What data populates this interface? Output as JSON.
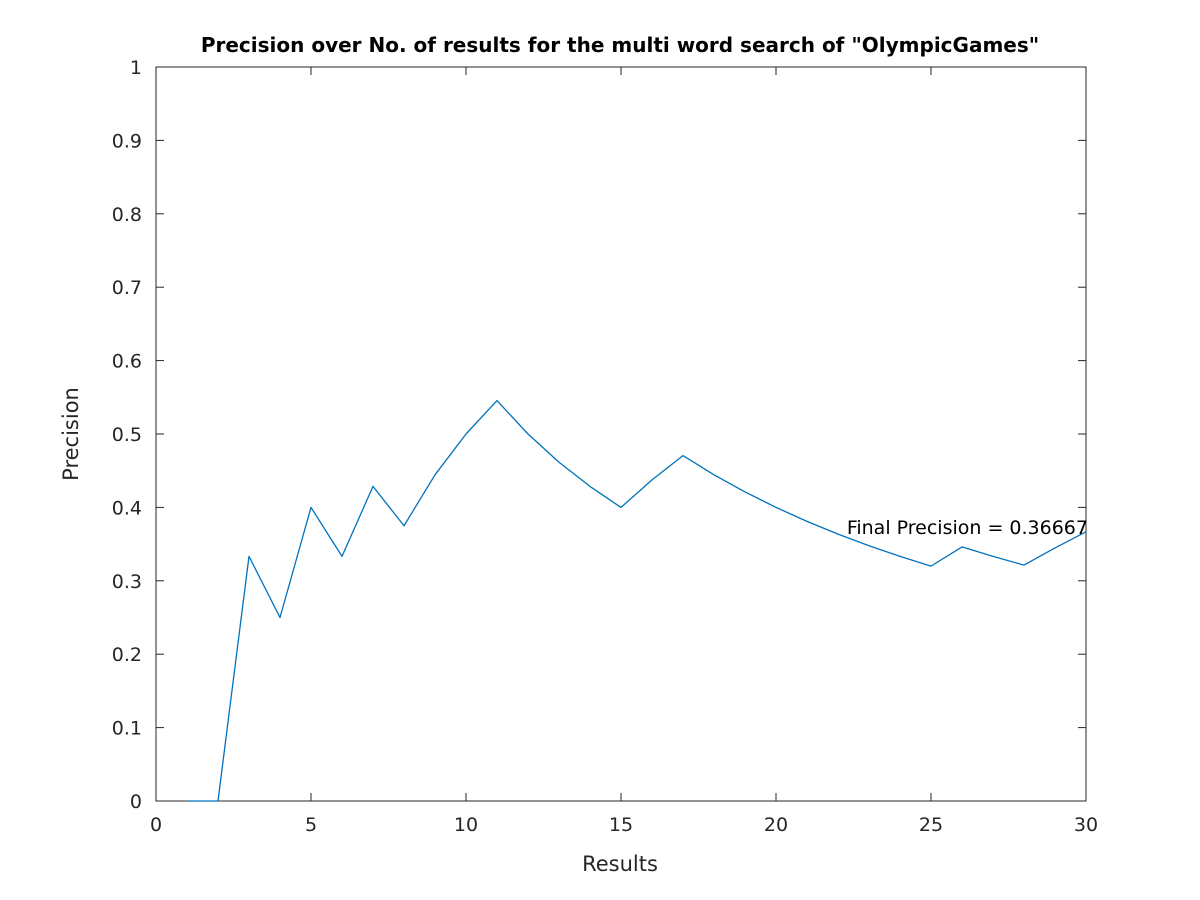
{
  "chart_data": {
    "type": "line",
    "title": "Precision over No. of results for the multi word search of \"OlympicGames\"",
    "xlabel": "Results",
    "ylabel": "Precision",
    "xlim": [
      0,
      30
    ],
    "ylim": [
      0,
      1
    ],
    "xticks": [
      "0",
      "5",
      "10",
      "15",
      "20",
      "25",
      "30"
    ],
    "yticks": [
      "0",
      "0.1",
      "0.2",
      "0.3",
      "0.4",
      "0.5",
      "0.6",
      "0.7",
      "0.8",
      "0.9",
      "1"
    ],
    "grid": false,
    "line_color": "#0072bd",
    "series": [
      {
        "x": [
          1,
          2,
          3,
          4,
          5,
          6,
          7,
          8,
          9,
          10,
          11,
          12,
          13,
          14,
          15,
          16,
          17,
          18,
          19,
          20,
          21,
          22,
          23,
          24,
          25,
          26,
          27,
          28,
          29,
          30
        ],
        "values": [
          0,
          0,
          0.3333,
          0.25,
          0.4,
          0.3333,
          0.4286,
          0.375,
          0.4444,
          0.5,
          0.5455,
          0.5,
          0.4615,
          0.4286,
          0.4,
          0.4375,
          0.4706,
          0.4444,
          0.4211,
          0.4,
          0.381,
          0.3636,
          0.3478,
          0.3333,
          0.32,
          0.3462,
          0.3333,
          0.3214,
          0.3448,
          0.3667
        ]
      }
    ],
    "annotations": [
      {
        "text": "Final Precision = 0.36667",
        "x": 30,
        "y": 0.36667
      }
    ]
  }
}
